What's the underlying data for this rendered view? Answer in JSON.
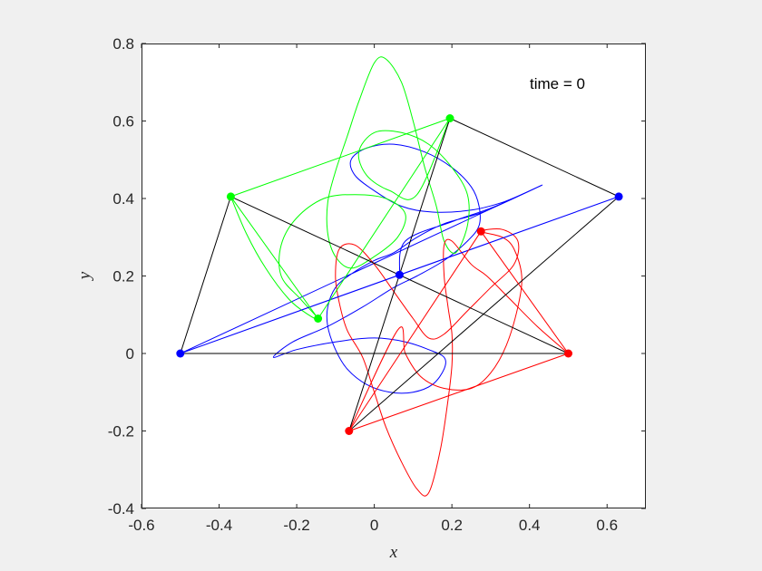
{
  "chart_data": {
    "type": "line",
    "title": "",
    "xlabel": "x",
    "ylabel": "y",
    "xlim": [
      -0.6,
      0.7
    ],
    "ylim": [
      -0.4,
      0.8
    ],
    "xticks": [
      -0.6,
      -0.4,
      -0.2,
      0,
      0.2,
      0.4,
      0.6
    ],
    "yticks": [
      -0.4,
      -0.2,
      0,
      0.2,
      0.4,
      0.6,
      0.8
    ],
    "xtick_labels": [
      "-0.6",
      "-0.4",
      "-0.2",
      "0",
      "0.2",
      "0.4",
      "0.6"
    ],
    "ytick_labels": [
      "-0.4",
      "-0.2",
      "0",
      "0.2",
      "0.4",
      "0.6",
      "0.8"
    ],
    "grid": false,
    "annotation": "time = 0",
    "triangles": [
      {
        "color": "#000000",
        "vertices": [
          [
            -0.5,
            0.0
          ],
          [
            0.5,
            0.0
          ],
          [
            -0.37,
            0.405
          ]
        ]
      },
      {
        "color": "#000000",
        "vertices": [
          [
            0.63,
            0.405
          ],
          [
            -0.065,
            -0.2
          ],
          [
            0.195,
            0.607
          ]
        ]
      },
      {
        "color": "#0000ff",
        "vertices": [
          [
            -0.5,
            0.0
          ],
          [
            0.63,
            0.405
          ],
          [
            0.065,
            0.203
          ]
        ]
      },
      {
        "color": "#00ff00",
        "vertices": [
          [
            -0.37,
            0.405
          ],
          [
            0.195,
            0.607
          ],
          [
            -0.145,
            0.09
          ]
        ]
      },
      {
        "color": "#ff0000",
        "vertices": [
          [
            0.5,
            0.0
          ],
          [
            -0.065,
            -0.2
          ],
          [
            0.275,
            0.315
          ]
        ]
      }
    ],
    "series": [
      {
        "color": "#0000ff",
        "points": [
          [
            -0.5,
            0.0
          ],
          [
            0.63,
            0.405
          ],
          [
            0.065,
            0.203
          ]
        ]
      },
      {
        "color": "#00ff00",
        "points": [
          [
            -0.37,
            0.405
          ],
          [
            0.195,
            0.607
          ],
          [
            -0.145,
            0.09
          ]
        ]
      },
      {
        "color": "#ff0000",
        "points": [
          [
            0.5,
            0.0
          ],
          [
            -0.065,
            -0.2
          ],
          [
            0.275,
            0.315
          ]
        ]
      }
    ],
    "trajectories": [
      {
        "color": "#0000ff",
        "points": [
          [
            -0.5,
            0.0
          ],
          [
            0.39,
            0.415
          ],
          [
            0.28,
            0.365
          ],
          [
            0.18,
            0.335
          ],
          [
            0.11,
            0.3
          ],
          [
            0.05,
            0.26
          ],
          [
            0.0,
            0.24
          ],
          [
            -0.06,
            0.205
          ],
          [
            -0.1,
            0.17
          ],
          [
            -0.12,
            0.12
          ],
          [
            -0.12,
            0.07
          ],
          [
            -0.1,
            0.01
          ],
          [
            -0.07,
            -0.04
          ],
          [
            -0.02,
            -0.08
          ],
          [
            0.04,
            -0.1
          ],
          [
            0.1,
            -0.1
          ],
          [
            0.15,
            -0.08
          ],
          [
            0.18,
            -0.04
          ],
          [
            0.18,
            -0.01
          ],
          [
            0.14,
            0.01
          ],
          [
            0.08,
            0.03
          ],
          [
            0.0,
            0.04
          ],
          [
            -0.1,
            0.03
          ],
          [
            -0.2,
            0.01
          ],
          [
            -0.26,
            -0.01
          ],
          [
            -0.21,
            0.03
          ],
          [
            -0.12,
            0.07
          ],
          [
            -0.03,
            0.12
          ],
          [
            0.05,
            0.17
          ],
          [
            0.11,
            0.2
          ],
          [
            0.18,
            0.24
          ],
          [
            0.24,
            0.29
          ],
          [
            0.27,
            0.33
          ],
          [
            0.27,
            0.38
          ],
          [
            0.25,
            0.43
          ],
          [
            0.2,
            0.48
          ],
          [
            0.13,
            0.52
          ],
          [
            0.05,
            0.54
          ],
          [
            -0.02,
            0.53
          ],
          [
            -0.06,
            0.5
          ],
          [
            -0.05,
            0.46
          ],
          [
            0.0,
            0.42
          ],
          [
            0.07,
            0.38
          ],
          [
            0.15,
            0.365
          ],
          [
            0.25,
            0.37
          ],
          [
            0.33,
            0.39
          ],
          [
            0.39,
            0.415
          ],
          [
            0.3,
            0.375
          ],
          [
            0.2,
            0.34
          ],
          [
            0.08,
            0.29
          ],
          [
            0.065,
            0.203
          ]
        ]
      },
      {
        "color": "#00ff00",
        "points": [
          [
            -0.37,
            0.405
          ],
          [
            -0.33,
            0.31
          ],
          [
            -0.28,
            0.22
          ],
          [
            -0.22,
            0.14
          ],
          [
            -0.17,
            0.1
          ],
          [
            -0.145,
            0.09
          ],
          [
            -0.19,
            0.14
          ],
          [
            -0.24,
            0.2
          ],
          [
            -0.24,
            0.28
          ],
          [
            -0.2,
            0.35
          ],
          [
            -0.13,
            0.4
          ],
          [
            -0.05,
            0.41
          ],
          [
            0.03,
            0.4
          ],
          [
            0.08,
            0.36
          ],
          [
            0.06,
            0.3
          ],
          [
            0.0,
            0.25
          ],
          [
            -0.06,
            0.22
          ],
          [
            -0.1,
            0.25
          ],
          [
            -0.12,
            0.31
          ],
          [
            -0.12,
            0.39
          ],
          [
            -0.1,
            0.47
          ],
          [
            -0.07,
            0.56
          ],
          [
            -0.04,
            0.65
          ],
          [
            0.0,
            0.75
          ],
          [
            0.03,
            0.76
          ],
          [
            0.07,
            0.7
          ],
          [
            0.1,
            0.6
          ],
          [
            0.13,
            0.48
          ],
          [
            0.16,
            0.38
          ],
          [
            0.18,
            0.29
          ],
          [
            0.21,
            0.26
          ],
          [
            0.24,
            0.33
          ],
          [
            0.24,
            0.41
          ],
          [
            0.2,
            0.48
          ],
          [
            0.14,
            0.54
          ],
          [
            0.07,
            0.57
          ],
          [
            0.0,
            0.57
          ],
          [
            -0.04,
            0.52
          ],
          [
            -0.02,
            0.46
          ],
          [
            0.04,
            0.42
          ],
          [
            0.11,
            0.41
          ],
          [
            0.195,
            0.607
          ]
        ]
      },
      {
        "color": "#ff0000",
        "points": [
          [
            0.5,
            0.0
          ],
          [
            0.42,
            0.07
          ],
          [
            0.35,
            0.14
          ],
          [
            0.29,
            0.2
          ],
          [
            0.25,
            0.23
          ],
          [
            0.2,
            0.29
          ],
          [
            0.18,
            0.28
          ],
          [
            0.18,
            0.2
          ],
          [
            0.19,
            0.12
          ],
          [
            0.2,
            0.05
          ],
          [
            0.2,
            -0.03
          ],
          [
            0.19,
            -0.12
          ],
          [
            0.17,
            -0.25
          ],
          [
            0.14,
            -0.36
          ],
          [
            0.11,
            -0.35
          ],
          [
            0.07,
            -0.28
          ],
          [
            0.03,
            -0.19
          ],
          [
            0.0,
            -0.1
          ],
          [
            -0.03,
            -0.01
          ],
          [
            -0.07,
            0.06
          ],
          [
            -0.09,
            0.13
          ],
          [
            -0.1,
            0.2
          ],
          [
            -0.09,
            0.27
          ],
          [
            -0.05,
            0.28
          ],
          [
            0.0,
            0.23
          ],
          [
            0.05,
            0.16
          ],
          [
            0.1,
            0.09
          ],
          [
            0.14,
            0.04
          ],
          [
            0.18,
            0.05
          ],
          [
            0.24,
            0.11
          ],
          [
            0.3,
            0.17
          ],
          [
            0.36,
            0.23
          ],
          [
            0.37,
            0.29
          ],
          [
            0.33,
            0.32
          ],
          [
            0.275,
            0.315
          ],
          [
            0.33,
            0.3
          ],
          [
            0.36,
            0.27
          ],
          [
            0.38,
            0.2
          ],
          [
            0.37,
            0.12
          ],
          [
            0.34,
            0.02
          ],
          [
            0.3,
            -0.05
          ],
          [
            0.25,
            -0.09
          ],
          [
            0.18,
            -0.09
          ],
          [
            0.12,
            -0.06
          ],
          [
            0.08,
            0.0
          ],
          [
            0.06,
            0.06
          ],
          [
            -0.065,
            -0.2
          ]
        ]
      }
    ]
  }
}
